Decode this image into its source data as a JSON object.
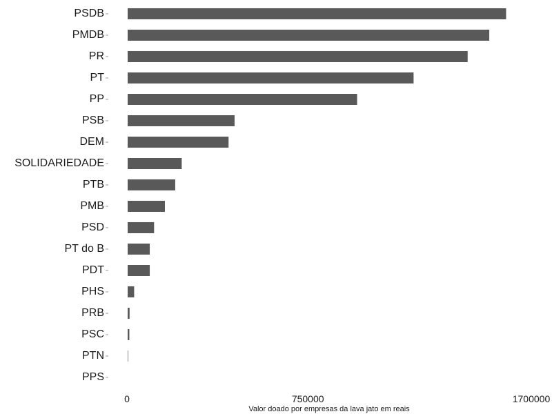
{
  "chart_data": {
    "type": "bar",
    "orientation": "horizontal",
    "categories": [
      "PSDB",
      "PMDB",
      "PR",
      "PT",
      "PP",
      "PSB",
      "DEM",
      "SOLIDARIEDADE",
      "PTB",
      "PMB",
      "PSD",
      "PT do B",
      "PDT",
      "PHS",
      "PRB",
      "PSC",
      "PTN",
      "PPS"
    ],
    "values": [
      1575000,
      1505000,
      1415000,
      1190000,
      955000,
      445000,
      420000,
      225000,
      198000,
      155000,
      110000,
      92000,
      92000,
      27000,
      8000,
      7000,
      2000,
      0
    ],
    "xlabel": "Valor doado por empresas da lava jato em reais",
    "ylabel": "",
    "xlim": [
      0,
      1700000
    ],
    "x_ticks": [
      0,
      750000,
      1700000
    ],
    "x_tick_labels": [
      "0",
      "750000",
      "1700000"
    ],
    "grid": false,
    "legend": "none",
    "bar_color": "#595959"
  }
}
